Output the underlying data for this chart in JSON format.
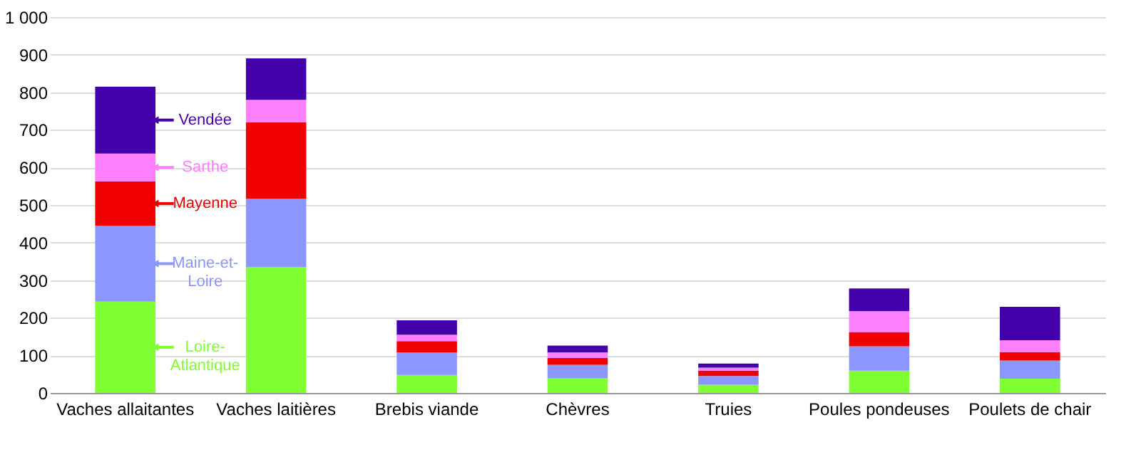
{
  "chart_data": {
    "type": "bar",
    "stacked": true,
    "grid": "y",
    "legend": "left",
    "categories": [
      "Vaches allaitantes",
      "Vaches laitières",
      "Brebis viande",
      "Chèvres",
      "Truies",
      "Poules pondeuses",
      "Poulets de chair"
    ],
    "series": [
      {
        "name": "Loire-Atlantique",
        "color": "#80ff33",
        "values": [
          243,
          335,
          48,
          39,
          22,
          59,
          38
        ]
      },
      {
        "name": "Maine-et-Loire",
        "color": "#8c96ff",
        "values": [
          202,
          182,
          60,
          36,
          23,
          65,
          48
        ]
      },
      {
        "name": "Mayenne",
        "color": "#f00000",
        "values": [
          118,
          203,
          30,
          18,
          14,
          38,
          23
        ]
      },
      {
        "name": "Sarthe",
        "color": "#ff80ff",
        "values": [
          74,
          60,
          17,
          15,
          8,
          56,
          31
        ]
      },
      {
        "name": "Vendée",
        "color": "#4400aa",
        "values": [
          178,
          110,
          38,
          18,
          11,
          60,
          89
        ]
      }
    ],
    "ylim": [
      0,
      1000
    ],
    "yticks": [
      0,
      100,
      200,
      300,
      400,
      500,
      600,
      700,
      800,
      900,
      {
        "value": 1000,
        "label": "1 000"
      }
    ]
  }
}
